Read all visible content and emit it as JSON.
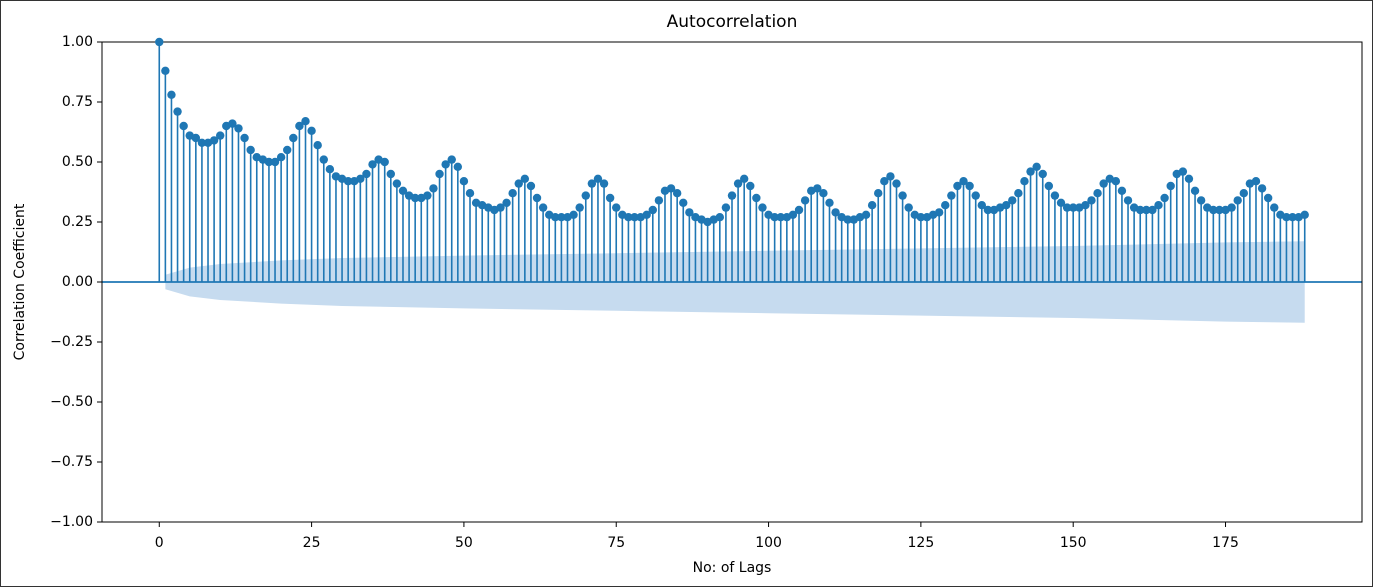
{
  "chart_data": {
    "type": "stem",
    "title": "Autocorrelation",
    "xlabel": "No: of Lags",
    "ylabel": "Correlation Coefficient",
    "color": "#1f77b4",
    "band_color": "#c6dbef",
    "xlim": [
      -9.4,
      197.4
    ],
    "ylim": [
      -1,
      1
    ],
    "xticks": [
      0,
      25,
      50,
      75,
      100,
      125,
      150,
      175
    ],
    "yticks": [
      {
        "value": -1,
        "label": "−1.00"
      },
      {
        "value": -0.75,
        "label": "−0.75"
      },
      {
        "value": -0.5,
        "label": "−0.50"
      },
      {
        "value": -0.25,
        "label": "−0.25"
      },
      {
        "value": 0,
        "label": "0.00"
      },
      {
        "value": 0.25,
        "label": "0.25"
      },
      {
        "value": 0.5,
        "label": "0.50"
      },
      {
        "value": 0.75,
        "label": "0.75"
      },
      {
        "value": 1,
        "label": "1.00"
      }
    ],
    "x": [
      0,
      1,
      2,
      3,
      4,
      5,
      6,
      7,
      8,
      9,
      10,
      11,
      12,
      13,
      14,
      15,
      16,
      17,
      18,
      19,
      20,
      21,
      22,
      23,
      24,
      25,
      26,
      27,
      28,
      29,
      30,
      31,
      32,
      33,
      34,
      35,
      36,
      37,
      38,
      39,
      40,
      41,
      42,
      43,
      44,
      45,
      46,
      47,
      48,
      49,
      50,
      51,
      52,
      53,
      54,
      55,
      56,
      57,
      58,
      59,
      60,
      61,
      62,
      63,
      64,
      65,
      66,
      67,
      68,
      69,
      70,
      71,
      72,
      73,
      74,
      75,
      76,
      77,
      78,
      79,
      80,
      81,
      82,
      83,
      84,
      85,
      86,
      87,
      88,
      89,
      90,
      91,
      92,
      93,
      94,
      95,
      96,
      97,
      98,
      99,
      100,
      101,
      102,
      103,
      104,
      105,
      106,
      107,
      108,
      109,
      110,
      111,
      112,
      113,
      114,
      115,
      116,
      117,
      118,
      119,
      120,
      121,
      122,
      123,
      124,
      125,
      126,
      127,
      128,
      129,
      130,
      131,
      132,
      133,
      134,
      135,
      136,
      137,
      138,
      139,
      140,
      141,
      142,
      143,
      144,
      145,
      146,
      147,
      148,
      149,
      150,
      151,
      152,
      153,
      154,
      155,
      156,
      157,
      158,
      159,
      160,
      161,
      162,
      163,
      164,
      165,
      166,
      167,
      168,
      169,
      170,
      171,
      172,
      173,
      174,
      175,
      176,
      177,
      178,
      179,
      180,
      181,
      182,
      183,
      184,
      185,
      186,
      187,
      188
    ],
    "values": [
      1.0,
      0.88,
      0.78,
      0.71,
      0.65,
      0.61,
      0.6,
      0.58,
      0.58,
      0.59,
      0.61,
      0.65,
      0.66,
      0.64,
      0.6,
      0.55,
      0.52,
      0.51,
      0.5,
      0.5,
      0.52,
      0.55,
      0.6,
      0.65,
      0.67,
      0.63,
      0.57,
      0.51,
      0.47,
      0.44,
      0.43,
      0.42,
      0.42,
      0.43,
      0.45,
      0.49,
      0.51,
      0.5,
      0.45,
      0.41,
      0.38,
      0.36,
      0.35,
      0.35,
      0.36,
      0.39,
      0.45,
      0.49,
      0.51,
      0.48,
      0.42,
      0.37,
      0.33,
      0.32,
      0.31,
      0.3,
      0.31,
      0.33,
      0.37,
      0.41,
      0.43,
      0.4,
      0.35,
      0.31,
      0.28,
      0.27,
      0.27,
      0.27,
      0.28,
      0.31,
      0.36,
      0.41,
      0.43,
      0.41,
      0.35,
      0.31,
      0.28,
      0.27,
      0.27,
      0.27,
      0.28,
      0.3,
      0.34,
      0.38,
      0.39,
      0.37,
      0.33,
      0.29,
      0.27,
      0.26,
      0.25,
      0.26,
      0.27,
      0.31,
      0.36,
      0.41,
      0.43,
      0.4,
      0.35,
      0.31,
      0.28,
      0.27,
      0.27,
      0.27,
      0.28,
      0.3,
      0.34,
      0.38,
      0.39,
      0.37,
      0.33,
      0.29,
      0.27,
      0.26,
      0.26,
      0.27,
      0.28,
      0.32,
      0.37,
      0.42,
      0.44,
      0.41,
      0.36,
      0.31,
      0.28,
      0.27,
      0.27,
      0.28,
      0.29,
      0.32,
      0.36,
      0.4,
      0.42,
      0.4,
      0.36,
      0.32,
      0.3,
      0.3,
      0.31,
      0.32,
      0.34,
      0.37,
      0.42,
      0.46,
      0.48,
      0.45,
      0.4,
      0.36,
      0.33,
      0.31,
      0.31,
      0.31,
      0.32,
      0.34,
      0.37,
      0.41,
      0.43,
      0.42,
      0.38,
      0.34,
      0.31,
      0.3,
      0.3,
      0.3,
      0.32,
      0.35,
      0.4,
      0.45,
      0.46,
      0.43,
      0.38,
      0.34,
      0.31,
      0.3,
      0.3,
      0.3,
      0.31,
      0.34,
      0.37,
      0.41,
      0.42,
      0.39,
      0.35,
      0.31,
      0.28,
      0.27,
      0.27,
      0.27,
      0.28
    ],
    "confidence_band": {
      "x": [
        1,
        5,
        10,
        20,
        30,
        50,
        75,
        100,
        125,
        150,
        175,
        188
      ],
      "values": [
        0.03,
        0.06,
        0.075,
        0.09,
        0.1,
        0.11,
        0.12,
        0.13,
        0.14,
        0.15,
        0.165,
        0.17
      ]
    }
  }
}
